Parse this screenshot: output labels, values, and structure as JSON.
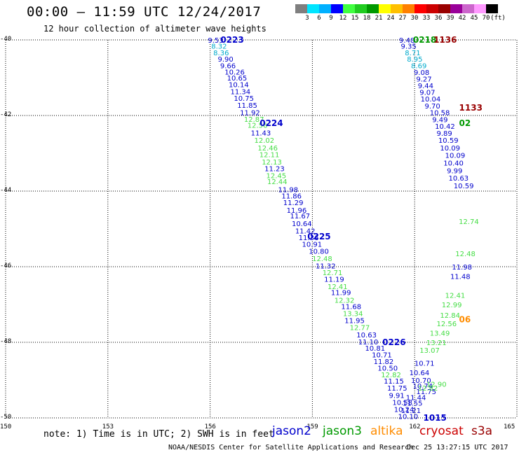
{
  "title": "00:00 – 11:59 UTC 12/24/2017",
  "subtitle": "12 hour collection of altimeter wave heights",
  "colorbar": {
    "colors": [
      "#7f7f7f",
      "#00e5ff",
      "#00b0ff",
      "#0000ff",
      "#40ff40",
      "#20cc20",
      "#009900",
      "#ffff00",
      "#ffc000",
      "#ff8000",
      "#ff0000",
      "#cc0000",
      "#990000",
      "#990099",
      "#cc66cc",
      "#ff99ff",
      "#000000"
    ],
    "tick_labels": [
      "3",
      "6",
      "9",
      "12",
      "15",
      "18",
      "21",
      "24",
      "27",
      "30",
      "33",
      "36",
      "39",
      "42",
      "45",
      "70",
      "(ft)"
    ]
  },
  "axes": {
    "x_ticks": [
      150,
      153,
      156,
      159,
      162,
      165
    ],
    "y_ticks": [
      -40,
      -42,
      -44,
      -46,
      -48,
      -50
    ],
    "x_range": [
      150,
      165
    ],
    "y_range": [
      -50,
      -40
    ]
  },
  "note": "note: 1) Time is in UTC; 2) SWH is in feet",
  "legend": [
    {
      "name": "jason2",
      "color": "#0000cc"
    },
    {
      "name": "jason3",
      "color": "#009900"
    },
    {
      "name": "altika",
      "color": "#ff8c00"
    },
    {
      "name": "cryosat",
      "color": "#cc0000"
    },
    {
      "name": "s3a",
      "color": "#990000"
    }
  ],
  "credit": "NOAA/NESDIS Center for Satellite Applications and Research",
  "timestamp": "Dec 25 13:27:15 UTC 2017",
  "track1": {
    "points": [
      {
        "lon": 156.14,
        "lat": -40.0,
        "v": "9.53",
        "c": "#0000cc"
      },
      {
        "lon": 156.24,
        "lat": -40.16,
        "v": "8.32",
        "c": "#00aacc"
      },
      {
        "lon": 156.3,
        "lat": -40.33,
        "v": "8.36",
        "c": "#00aacc"
      },
      {
        "lon": 156.43,
        "lat": -40.5,
        "v": "9.90",
        "c": "#0000cc"
      },
      {
        "lon": 156.5,
        "lat": -40.68,
        "v": "9.66",
        "c": "#0000cc"
      },
      {
        "lon": 156.63,
        "lat": -40.84,
        "v": "10.26",
        "c": "#0000cc"
      },
      {
        "lon": 156.7,
        "lat": -41.0,
        "v": "10.65",
        "c": "#0000cc"
      },
      {
        "lon": 156.75,
        "lat": -41.18,
        "v": "10.14",
        "c": "#0000cc"
      },
      {
        "lon": 156.8,
        "lat": -41.36,
        "v": "11.34",
        "c": "#0000cc"
      },
      {
        "lon": 156.9,
        "lat": -41.54,
        "v": "10.75",
        "c": "#0000cc"
      },
      {
        "lon": 157.0,
        "lat": -41.72,
        "v": "11.85",
        "c": "#0000cc"
      },
      {
        "lon": 157.08,
        "lat": -41.92,
        "v": "11.92",
        "c": "#0000cc"
      },
      {
        "lon": 157.2,
        "lat": -42.09,
        "v": "12.87",
        "c": "#44dd44"
      },
      {
        "lon": 157.3,
        "lat": -42.25,
        "v": "12.56",
        "c": "#44dd44"
      },
      {
        "lon": 157.4,
        "lat": -42.45,
        "v": "11.43",
        "c": "#0000cc"
      },
      {
        "lon": 157.5,
        "lat": -42.65,
        "v": "12.02",
        "c": "#44dd44"
      },
      {
        "lon": 157.6,
        "lat": -42.85,
        "v": "12.46",
        "c": "#44dd44"
      },
      {
        "lon": 157.65,
        "lat": -43.03,
        "v": "12.11",
        "c": "#44dd44"
      },
      {
        "lon": 157.72,
        "lat": -43.22,
        "v": "12.13",
        "c": "#44dd44"
      },
      {
        "lon": 157.8,
        "lat": -43.4,
        "v": "11.23",
        "c": "#0000cc"
      },
      {
        "lon": 157.85,
        "lat": -43.58,
        "v": "12.45",
        "c": "#44dd44"
      },
      {
        "lon": 157.88,
        "lat": -43.74,
        "v": "12.44",
        "c": "#44dd44"
      },
      {
        "lon": 158.2,
        "lat": -43.95,
        "v": "11.98",
        "c": "#0000cc"
      },
      {
        "lon": 158.3,
        "lat": -44.12,
        "v": "11.86",
        "c": "#0000cc"
      },
      {
        "lon": 158.35,
        "lat": -44.3,
        "v": "11.29",
        "c": "#0000cc"
      },
      {
        "lon": 158.45,
        "lat": -44.5,
        "v": "11.96",
        "c": "#0000cc"
      },
      {
        "lon": 158.55,
        "lat": -44.65,
        "v": "11.67",
        "c": "#0000cc"
      },
      {
        "lon": 158.6,
        "lat": -44.85,
        "v": "10.64",
        "c": "#0000cc"
      },
      {
        "lon": 158.7,
        "lat": -45.05,
        "v": "11.42",
        "c": "#0000cc"
      },
      {
        "lon": 158.8,
        "lat": -45.22,
        "v": "11.36",
        "c": "#0000cc"
      },
      {
        "lon": 158.9,
        "lat": -45.4,
        "v": "10.91",
        "c": "#0000cc"
      },
      {
        "lon": 159.1,
        "lat": -45.58,
        "v": "10.80",
        "c": "#0000cc"
      },
      {
        "lon": 159.2,
        "lat": -45.78,
        "v": "12.48",
        "c": "#44dd44"
      },
      {
        "lon": 159.3,
        "lat": -45.97,
        "v": "11.32",
        "c": "#0000cc"
      },
      {
        "lon": 159.5,
        "lat": -46.15,
        "v": "12.71",
        "c": "#44dd44"
      },
      {
        "lon": 159.55,
        "lat": -46.32,
        "v": "11.19",
        "c": "#0000cc"
      },
      {
        "lon": 159.65,
        "lat": -46.52,
        "v": "12.41",
        "c": "#44dd44"
      },
      {
        "lon": 159.75,
        "lat": -46.68,
        "v": "11.99",
        "c": "#0000cc"
      },
      {
        "lon": 159.85,
        "lat": -46.88,
        "v": "12.32",
        "c": "#44dd44"
      },
      {
        "lon": 160.05,
        "lat": -47.05,
        "v": "11.68",
        "c": "#0000cc"
      },
      {
        "lon": 160.1,
        "lat": -47.23,
        "v": "13.34",
        "c": "#44dd44"
      },
      {
        "lon": 160.15,
        "lat": -47.42,
        "v": "11.95",
        "c": "#0000cc"
      },
      {
        "lon": 160.3,
        "lat": -47.6,
        "v": "12.77",
        "c": "#44dd44"
      },
      {
        "lon": 160.5,
        "lat": -47.8,
        "v": "10.63",
        "c": "#0000cc"
      },
      {
        "lon": 160.55,
        "lat": -47.98,
        "v": "11.10",
        "c": "#0000cc"
      },
      {
        "lon": 160.75,
        "lat": -48.15,
        "v": "10.81",
        "c": "#0000cc"
      },
      {
        "lon": 160.95,
        "lat": -48.32,
        "v": "10.71",
        "c": "#0000cc"
      },
      {
        "lon": 161.0,
        "lat": -48.5,
        "v": "11.82",
        "c": "#0000cc"
      },
      {
        "lon": 161.12,
        "lat": -48.68,
        "v": "10.50",
        "c": "#0000cc"
      },
      {
        "lon": 161.22,
        "lat": -48.85,
        "v": "12.82",
        "c": "#44dd44"
      },
      {
        "lon": 161.3,
        "lat": -49.02,
        "v": "11.15",
        "c": "#0000cc"
      },
      {
        "lon": 161.4,
        "lat": -49.2,
        "v": "11.75",
        "c": "#0000cc"
      },
      {
        "lon": 161.45,
        "lat": -49.4,
        "v": "9.91",
        "c": "#0000cc"
      },
      {
        "lon": 161.55,
        "lat": -49.58,
        "v": "10.58",
        "c": "#0000cc"
      },
      {
        "lon": 161.6,
        "lat": -49.77,
        "v": "10.24",
        "c": "#0000cc"
      },
      {
        "lon": 161.72,
        "lat": -49.95,
        "v": "10.10",
        "c": "#0000cc"
      }
    ],
    "time_labels": [
      {
        "lon": 156.55,
        "lat": -40.0,
        "t": "0223"
      },
      {
        "lon": 157.7,
        "lat": -42.2,
        "t": "0224"
      },
      {
        "lon": 159.1,
        "lat": -45.2,
        "t": "0225"
      },
      {
        "lon": 161.3,
        "lat": -48.0,
        "t": "0226"
      }
    ]
  },
  "track2": {
    "points": [
      {
        "lon": 161.75,
        "lat": -40.0,
        "v": "9.48",
        "c": "#0000cc"
      },
      {
        "lon": 161.8,
        "lat": -40.16,
        "v": "9.35",
        "c": "#0000cc"
      },
      {
        "lon": 161.92,
        "lat": -40.33,
        "v": "8.71",
        "c": "#00aacc"
      },
      {
        "lon": 161.98,
        "lat": -40.5,
        "v": "8.95",
        "c": "#00aacc"
      },
      {
        "lon": 162.1,
        "lat": -40.68,
        "v": "8.69",
        "c": "#00aacc"
      },
      {
        "lon": 162.18,
        "lat": -40.85,
        "v": "9.08",
        "c": "#0000cc"
      },
      {
        "lon": 162.25,
        "lat": -41.03,
        "v": "9.27",
        "c": "#0000cc"
      },
      {
        "lon": 162.3,
        "lat": -41.2,
        "v": "9.44",
        "c": "#0000cc"
      },
      {
        "lon": 162.35,
        "lat": -41.38,
        "v": "9.07",
        "c": "#0000cc"
      },
      {
        "lon": 162.38,
        "lat": -41.56,
        "v": "10.04",
        "c": "#0000cc"
      },
      {
        "lon": 162.5,
        "lat": -41.74,
        "v": "9.70",
        "c": "#0000cc"
      },
      {
        "lon": 162.65,
        "lat": -41.92,
        "v": "10.58",
        "c": "#0000cc"
      },
      {
        "lon": 162.72,
        "lat": -42.1,
        "v": "9.49",
        "c": "#0000cc"
      },
      {
        "lon": 162.8,
        "lat": -42.28,
        "v": "10.42",
        "c": "#0000cc"
      },
      {
        "lon": 162.85,
        "lat": -42.46,
        "v": "9.89",
        "c": "#0000cc"
      },
      {
        "lon": 162.9,
        "lat": -42.65,
        "v": "10.59",
        "c": "#0000cc"
      },
      {
        "lon": 162.95,
        "lat": -42.85,
        "v": "10.09",
        "c": "#0000cc"
      },
      {
        "lon": 163.1,
        "lat": -43.05,
        "v": "10.09",
        "c": "#0000cc"
      },
      {
        "lon": 163.05,
        "lat": -43.25,
        "v": "10.40",
        "c": "#0000cc"
      },
      {
        "lon": 163.15,
        "lat": -43.45,
        "v": "9.99",
        "c": "#0000cc"
      },
      {
        "lon": 163.2,
        "lat": -43.65,
        "v": "10.63",
        "c": "#0000cc"
      },
      {
        "lon": 163.35,
        "lat": -43.85,
        "v": "10.59",
        "c": "#0000cc"
      },
      {
        "lon": 163.5,
        "lat": -44.8,
        "v": "12.74",
        "c": "#44dd44"
      },
      {
        "lon": 163.4,
        "lat": -45.65,
        "v": "12.48",
        "c": "#44dd44"
      },
      {
        "lon": 163.3,
        "lat": -46.0,
        "v": "11.98",
        "c": "#0000cc"
      },
      {
        "lon": 163.25,
        "lat": -46.25,
        "v": "11.48",
        "c": "#0000cc"
      },
      {
        "lon": 163.1,
        "lat": -46.75,
        "v": "12.41",
        "c": "#44dd44"
      },
      {
        "lon": 163.0,
        "lat": -47.0,
        "v": "12.99",
        "c": "#44dd44"
      },
      {
        "lon": 162.95,
        "lat": -47.28,
        "v": "12.84",
        "c": "#44dd44"
      },
      {
        "lon": 162.85,
        "lat": -47.5,
        "v": "12.56",
        "c": "#44dd44"
      },
      {
        "lon": 162.65,
        "lat": -47.75,
        "v": "13.49",
        "c": "#44dd44"
      },
      {
        "lon": 162.55,
        "lat": -48.0,
        "v": "13.21",
        "c": "#44dd44"
      },
      {
        "lon": 162.35,
        "lat": -48.2,
        "v": "13.07",
        "c": "#44dd44"
      },
      {
        "lon": 162.2,
        "lat": -48.55,
        "v": "10.71",
        "c": "#0000cc"
      },
      {
        "lon": 162.05,
        "lat": -48.8,
        "v": "10.64",
        "c": "#0000cc"
      },
      {
        "lon": 162.1,
        "lat": -49.0,
        "v": "10.70",
        "c": "#0000cc"
      },
      {
        "lon": 162.15,
        "lat": -49.15,
        "v": "10.74",
        "c": "#0000cc"
      },
      {
        "lon": 162.25,
        "lat": -49.3,
        "v": "11.75",
        "c": "#0000cc"
      },
      {
        "lon": 161.95,
        "lat": -49.45,
        "v": "11.44",
        "c": "#0000cc"
      },
      {
        "lon": 161.85,
        "lat": -49.6,
        "v": "11.55",
        "c": "#0000cc"
      },
      {
        "lon": 161.8,
        "lat": -49.8,
        "v": "11.21",
        "c": "#0000cc"
      },
      {
        "lon": 162.55,
        "lat": -49.1,
        "v": "12.90",
        "c": "#44dd44"
      },
      {
        "lon": 162.3,
        "lat": -49.2,
        "v": "12.82",
        "c": "#44dd44"
      }
    ],
    "time_labels": [
      {
        "lon": 162.2,
        "lat": -40.0,
        "t": "0218",
        "c": "#009900"
      },
      {
        "lon": 162.8,
        "lat": -40.0,
        "t": "1136",
        "c": "#990000"
      },
      {
        "lon": 163.55,
        "lat": -41.8,
        "t": "1133",
        "c": "#990000"
      },
      {
        "lon": 163.55,
        "lat": -42.2,
        "t": "02",
        "c": "#009900"
      },
      {
        "lon": 163.55,
        "lat": -47.4,
        "t": "06",
        "c": "#ff8c00"
      },
      {
        "lon": 162.5,
        "lat": -50.0,
        "t": "1015",
        "c": "#0000cc"
      }
    ]
  }
}
